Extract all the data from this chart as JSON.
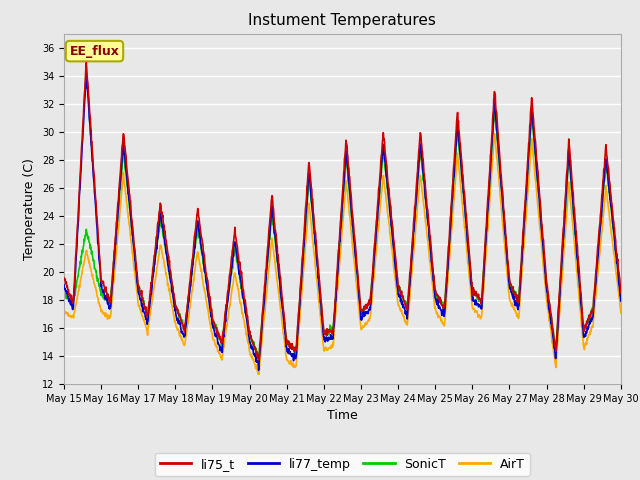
{
  "title": "Instument Temperatures",
  "xlabel": "Time",
  "ylabel": "Temperature (C)",
  "ylim": [
    12,
    37
  ],
  "yticks": [
    12,
    14,
    16,
    18,
    20,
    22,
    24,
    26,
    28,
    30,
    32,
    34,
    36
  ],
  "xtick_labels": [
    "May 15",
    "May 16",
    "May 17",
    "May 18",
    "May 19",
    "May 20",
    "May 21",
    "May 22",
    "May 23",
    "May 24",
    "May 25",
    "May 26",
    "May 27",
    "May 28",
    "May 29",
    "May 30"
  ],
  "colors": {
    "li75_t": "#cc0000",
    "li77_temp": "#0000cc",
    "SonicT": "#00cc00",
    "AirT": "#ffaa00"
  },
  "annotation_text": "EE_flux",
  "background_color": "#e8e8e8",
  "grid_color": "white",
  "peaks_base": [
    34.5,
    29.5,
    24.5,
    24.0,
    22.5,
    25.0,
    27.5,
    29.0,
    29.5,
    29.5,
    31.0,
    32.5,
    32.0,
    29.0,
    28.5,
    27.0
  ],
  "troughs_base": [
    17.5,
    17.5,
    16.5,
    15.5,
    14.5,
    13.5,
    14.0,
    15.5,
    17.5,
    17.0,
    17.0,
    17.5,
    17.5,
    14.0,
    17.0,
    16.5
  ],
  "offsets": {
    "li75_t": {
      "peak": 0.5,
      "trough": 0.3
    },
    "li77_temp": {
      "peak": -0.3,
      "trough": -0.2
    },
    "SonicT": {
      "peak": -0.8,
      "trough": 0.4
    },
    "AirT": {
      "peak": -2.5,
      "trough": -0.8
    }
  },
  "sonic_day0_peak": 23.0,
  "air_day0_peak": 21.5,
  "npoints": 1500,
  "title_fontsize": 11,
  "label_fontsize": 9,
  "tick_fontsize": 7,
  "legend_fontsize": 9,
  "linewidth": 1.2
}
